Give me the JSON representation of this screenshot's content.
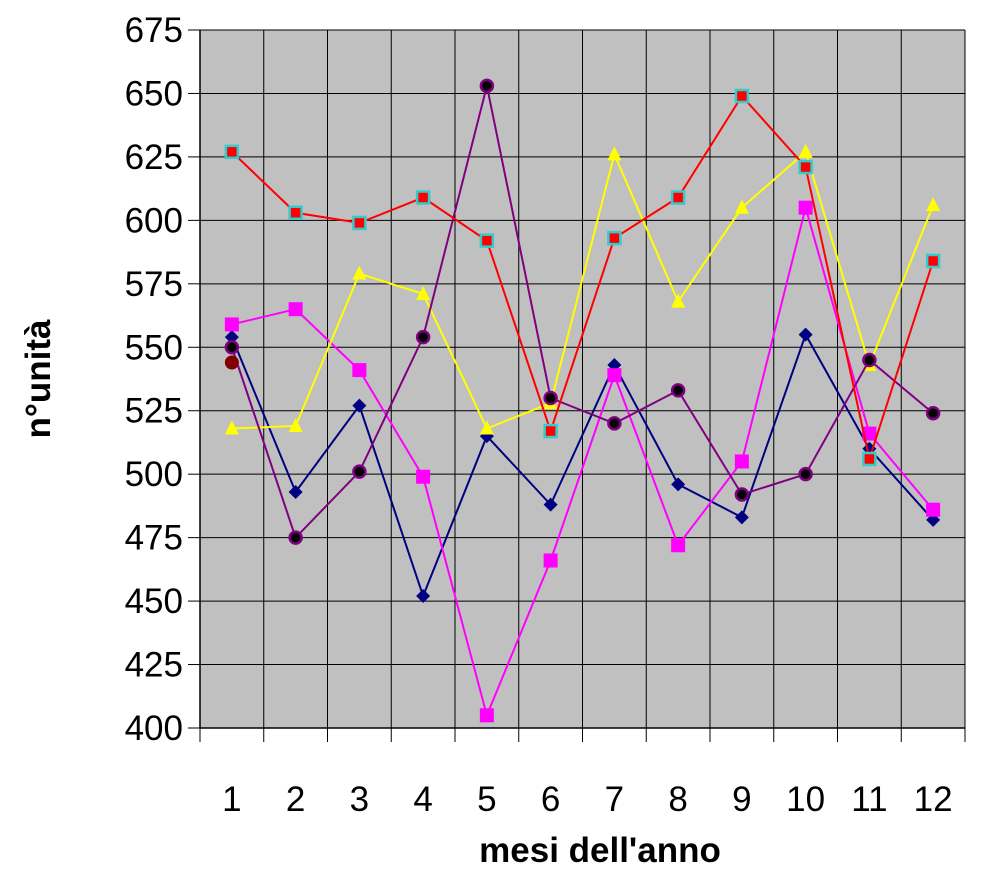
{
  "chart_data": {
    "type": "line",
    "title": "",
    "xlabel": "mesi dell'anno",
    "ylabel": "n°unità",
    "categories": [
      "1",
      "2",
      "3",
      "4",
      "5",
      "6",
      "7",
      "8",
      "9",
      "10",
      "11",
      "12"
    ],
    "ylim": [
      400,
      675
    ],
    "yticks": [
      400,
      425,
      450,
      475,
      500,
      525,
      550,
      575,
      600,
      625,
      650,
      675
    ],
    "grid": true,
    "legend": "none",
    "background_color": "#c0c0c0",
    "series": [
      {
        "color": "#000080",
        "marker": "diamond",
        "values": [
          554,
          493,
          527,
          452,
          515,
          488,
          543,
          496,
          483,
          555,
          510,
          482
        ]
      },
      {
        "color": "#ff00ff",
        "marker": "square",
        "values": [
          559,
          565,
          541,
          499,
          405,
          466,
          539,
          472,
          505,
          605,
          516,
          486
        ]
      },
      {
        "color": "#ffff00",
        "marker": "triangle",
        "values": [
          518,
          519,
          579,
          571,
          518,
          528,
          626,
          568,
          605,
          627,
          543,
          606
        ]
      },
      {
        "color": "#800080",
        "marker": "circle",
        "values": [
          550,
          475,
          501,
          554,
          653,
          530,
          520,
          533,
          492,
          500,
          545,
          524
        ]
      },
      {
        "color": "#ff0000",
        "marker": "square-outlined",
        "values": [
          627,
          603,
          599,
          609,
          592,
          517,
          593,
          609,
          649,
          621,
          506,
          584
        ]
      }
    ],
    "extra_points": [
      {
        "x": "1",
        "y": 544,
        "color": "#800000",
        "marker": "circle"
      }
    ]
  }
}
